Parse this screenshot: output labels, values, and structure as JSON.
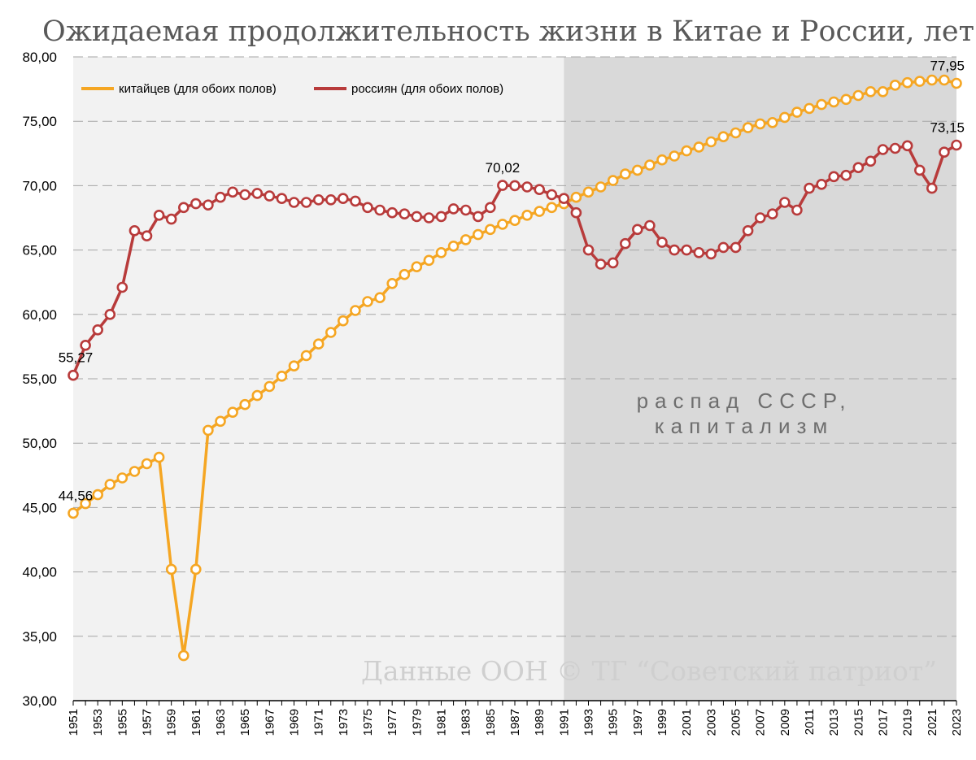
{
  "chart_data": {
    "type": "line",
    "title": "Ожидаемая продолжительность жизни в Китае и России, лет",
    "ylim": [
      30,
      80
    ],
    "y_ticks": [
      "30,00",
      "35,00",
      "40,00",
      "45,00",
      "50,00",
      "55,00",
      "60,00",
      "65,00",
      "70,00",
      "75,00",
      "80,00"
    ],
    "x_start": 1951,
    "x_end": 2023,
    "x_tick_labels": [
      "1951",
      "1953",
      "1955",
      "1957",
      "1959",
      "1961",
      "1963",
      "1965",
      "1967",
      "1969",
      "1971",
      "1973",
      "1975",
      "1977",
      "1979",
      "1981",
      "1983",
      "1985",
      "1987",
      "1989",
      "1991",
      "1993",
      "1995",
      "1997",
      "1999",
      "2001",
      "2003",
      "2005",
      "2007",
      "2009",
      "2011",
      "2013",
      "2015",
      "2017",
      "2019",
      "2021",
      "2023"
    ],
    "grid": "horizontal-dashed",
    "legend_position": "top-left",
    "shaded_region": {
      "from": 1991,
      "to": 2023,
      "label_line1": "распад СССР,",
      "label_line2": "капитализм"
    },
    "series": [
      {
        "name": "китайцев (для обоих полов)",
        "color": "#f5a623",
        "values": [
          44.56,
          45.3,
          46.0,
          46.8,
          47.3,
          47.8,
          48.4,
          48.9,
          40.2,
          33.5,
          40.2,
          51.0,
          51.7,
          52.4,
          53.0,
          53.7,
          54.4,
          55.2,
          56.0,
          56.8,
          57.7,
          58.6,
          59.5,
          60.3,
          61.0,
          61.3,
          62.4,
          63.1,
          63.7,
          64.2,
          64.8,
          65.3,
          65.8,
          66.2,
          66.6,
          67.0,
          67.3,
          67.7,
          68.0,
          68.3,
          68.6,
          69.1,
          69.5,
          69.9,
          70.4,
          70.9,
          71.2,
          71.6,
          72.0,
          72.3,
          72.7,
          73.0,
          73.4,
          73.8,
          74.1,
          74.5,
          74.8,
          74.9,
          75.3,
          75.7,
          76.0,
          76.3,
          76.5,
          76.7,
          77.0,
          77.3,
          77.3,
          77.8,
          78.0,
          78.1,
          78.2,
          78.2,
          77.95
        ]
      },
      {
        "name": "россиян (для обоих полов)",
        "color": "#b83b3b",
        "values": [
          55.27,
          57.6,
          58.8,
          60.0,
          62.1,
          66.5,
          66.1,
          67.7,
          67.4,
          68.3,
          68.6,
          68.5,
          69.1,
          69.5,
          69.3,
          69.4,
          69.2,
          69.0,
          68.7,
          68.7,
          68.9,
          68.9,
          69.0,
          68.8,
          68.3,
          68.1,
          67.9,
          67.8,
          67.6,
          67.5,
          67.6,
          68.2,
          68.1,
          67.6,
          68.3,
          70.02,
          70.0,
          69.9,
          69.7,
          69.3,
          69.0,
          67.9,
          65.0,
          63.9,
          64.0,
          65.5,
          66.6,
          66.9,
          65.6,
          65.0,
          65.0,
          64.8,
          64.7,
          65.2,
          65.2,
          66.5,
          67.5,
          67.8,
          68.7,
          68.1,
          69.8,
          70.1,
          70.7,
          70.8,
          71.4,
          71.9,
          72.8,
          72.9,
          73.1,
          71.2,
          69.8,
          72.6,
          73.15
        ]
      }
    ],
    "data_labels": [
      {
        "series": 1,
        "year": 1951,
        "text": "55,27"
      },
      {
        "series": 0,
        "year": 1951,
        "text": "44,56"
      },
      {
        "series": 1,
        "year": 1986,
        "text": "70,02"
      },
      {
        "series": 0,
        "year": 2023,
        "text": "77,95"
      },
      {
        "series": 1,
        "year": 2023,
        "text": "73,15"
      }
    ],
    "watermark": "Данные ООН © ТГ “Советский патриот”"
  }
}
